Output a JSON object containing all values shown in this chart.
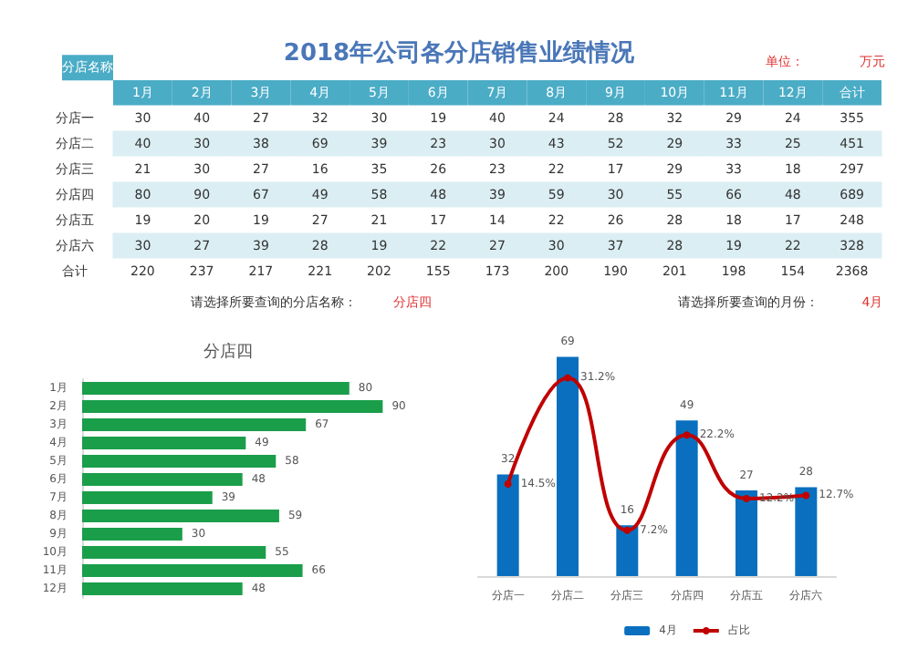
{
  "chart_data": [
    {
      "type": "heatmap",
      "title": "2018年公司各分店销售业绩情况",
      "ylabel": "分店名称",
      "data_labels": true,
      "categories": [
        "1月",
        "2月",
        "3月",
        "4月",
        "5月",
        "6月",
        "7月",
        "8月",
        "9月",
        "10月",
        "11月",
        "12月",
        "合计"
      ],
      "y_categories": [
        "分店一",
        "分店二",
        "分店三",
        "分店四",
        "分店五",
        "分店六",
        "合计"
      ],
      "cells": [
        [
          30,
          40,
          27,
          32,
          30,
          19,
          40,
          24,
          28,
          32,
          29,
          24,
          355
        ],
        [
          40,
          30,
          38,
          69,
          39,
          23,
          30,
          43,
          52,
          29,
          33,
          25,
          451
        ],
        [
          21,
          30,
          27,
          16,
          35,
          26,
          23,
          22,
          17,
          29,
          33,
          18,
          297
        ],
        [
          80,
          90,
          67,
          49,
          58,
          48,
          39,
          59,
          30,
          55,
          66,
          48,
          689
        ],
        [
          19,
          20,
          19,
          27,
          21,
          17,
          14,
          22,
          26,
          28,
          18,
          17,
          248
        ],
        [
          30,
          27,
          39,
          28,
          19,
          22,
          27,
          30,
          37,
          28,
          19,
          22,
          328
        ],
        [
          220,
          237,
          217,
          221,
          202,
          155,
          173,
          200,
          190,
          201,
          198,
          154,
          2368
        ]
      ],
      "annotations": [
        "单位：",
        "万元",
        "请选择所要查询的分店名称：",
        "分店四",
        "请选择所要查询的月份：",
        "4月"
      ]
    },
    {
      "type": "bar",
      "orientation": "horizontal",
      "title": "分店四",
      "categories": [
        "1月",
        "2月",
        "3月",
        "4月",
        "5月",
        "6月",
        "7月",
        "8月",
        "9月",
        "10月",
        "11月",
        "12月"
      ],
      "values": [
        80,
        90,
        67,
        49,
        58,
        48,
        39,
        59,
        30,
        55,
        66,
        48
      ],
      "color": "#1a9e4a",
      "data_labels": true
    },
    {
      "type": "bar",
      "categories": [
        "分店一",
        "分店二",
        "分店三",
        "分店四",
        "分店五",
        "分店六"
      ],
      "legend": "bottom",
      "series": [
        {
          "name": "4月",
          "type": "bar",
          "color": "#0a6fbf",
          "values": [
            32,
            69,
            16,
            49,
            27,
            28
          ],
          "data_labels": true
        },
        {
          "name": "占比",
          "type": "line",
          "axis": "y2",
          "color": "#c00000",
          "marker": "circle",
          "values": [
            14.5,
            31.2,
            7.2,
            22.2,
            12.2,
            12.7
          ],
          "value_labels": [
            "14.5%",
            "31.2%",
            "7.2%",
            "22.2%",
            "12.2%",
            "12.7%"
          ]
        }
      ]
    }
  ]
}
